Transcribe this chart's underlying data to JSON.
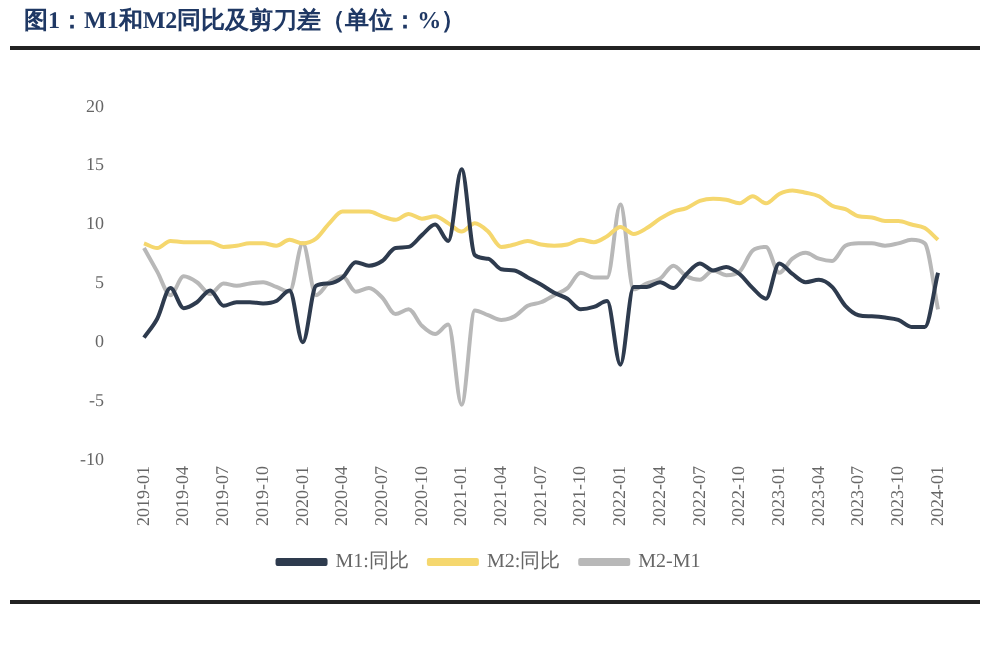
{
  "chart_data": {
    "type": "line",
    "title": "图1：M1和M2同比及剪刀差（单位：%）",
    "categories": [
      "2019-01",
      null,
      null,
      "2019-04",
      null,
      null,
      "2019-07",
      null,
      null,
      "2019-10",
      null,
      null,
      "2020-01",
      null,
      null,
      "2020-04",
      null,
      null,
      "2020-07",
      null,
      null,
      "2020-10",
      null,
      null,
      "2021-01",
      null,
      null,
      "2021-04",
      null,
      null,
      "2021-07",
      null,
      null,
      "2021-10",
      null,
      null,
      "2022-01",
      null,
      null,
      "2022-04",
      null,
      null,
      "2022-07",
      null,
      null,
      "2022-10",
      null,
      null,
      "2023-01",
      null,
      null,
      "2023-04",
      null,
      null,
      "2023-07",
      null,
      null,
      "2023-10",
      null,
      null,
      "2024-01"
    ],
    "series": [
      {
        "name": "M1:同比",
        "color": "#2e3b4e",
        "values": [
          0.4,
          2.0,
          4.6,
          2.9,
          3.4,
          4.4,
          3.1,
          3.4,
          3.4,
          3.3,
          3.5,
          4.4,
          0.0,
          4.8,
          5.0,
          5.5,
          6.8,
          6.5,
          6.9,
          8.0,
          8.1,
          9.1,
          10.0,
          8.6,
          14.7,
          7.4,
          7.1,
          6.2,
          6.1,
          5.5,
          4.9,
          4.2,
          3.7,
          2.8,
          3.0,
          3.5,
          -1.9,
          4.7,
          4.7,
          5.1,
          4.6,
          5.8,
          6.7,
          6.1,
          6.4,
          5.8,
          4.6,
          3.7,
          6.7,
          5.8,
          5.1,
          5.3,
          4.7,
          3.1,
          2.3,
          2.2,
          2.1,
          1.9,
          1.3,
          1.3,
          5.9
        ]
      },
      {
        "name": "M2:同比",
        "color": "#f5d76e",
        "values": [
          8.4,
          8.0,
          8.6,
          8.5,
          8.5,
          8.5,
          8.1,
          8.2,
          8.4,
          8.4,
          8.2,
          8.7,
          8.4,
          8.8,
          10.1,
          11.1,
          11.1,
          11.1,
          10.7,
          10.4,
          10.9,
          10.5,
          10.7,
          10.1,
          9.4,
          10.1,
          9.4,
          8.1,
          8.3,
          8.6,
          8.3,
          8.2,
          8.3,
          8.7,
          8.5,
          9.0,
          9.8,
          9.2,
          9.7,
          10.5,
          11.1,
          11.4,
          12.0,
          12.2,
          12.1,
          11.8,
          12.4,
          11.8,
          12.6,
          12.9,
          12.7,
          12.4,
          11.6,
          11.3,
          10.7,
          10.6,
          10.3,
          10.3,
          10.0,
          9.7,
          8.7
        ]
      },
      {
        "name": "M2-M1",
        "color": "#b8b8b8",
        "values": [
          8.0,
          6.0,
          4.0,
          5.6,
          5.1,
          4.1,
          5.0,
          4.8,
          5.0,
          5.1,
          4.7,
          4.3,
          8.4,
          4.0,
          5.1,
          5.6,
          4.3,
          4.6,
          3.8,
          2.4,
          2.8,
          1.4,
          0.7,
          1.5,
          -5.3,
          2.7,
          2.3,
          1.9,
          2.2,
          3.1,
          3.4,
          4.0,
          4.6,
          5.9,
          5.5,
          5.5,
          11.7,
          4.5,
          5.0,
          5.4,
          6.5,
          5.6,
          5.3,
          6.1,
          5.7,
          6.0,
          7.8,
          8.1,
          5.9,
          7.1,
          7.6,
          7.1,
          6.9,
          8.2,
          8.4,
          8.4,
          8.2,
          8.4,
          8.7,
          8.4,
          2.8
        ]
      }
    ],
    "ylim": [
      -10,
      20
    ],
    "yticks": [
      -10,
      -5,
      0,
      5,
      10,
      15,
      20
    ],
    "grid": false,
    "legend": "bottom",
    "marker": "none",
    "line_style": "solid"
  }
}
